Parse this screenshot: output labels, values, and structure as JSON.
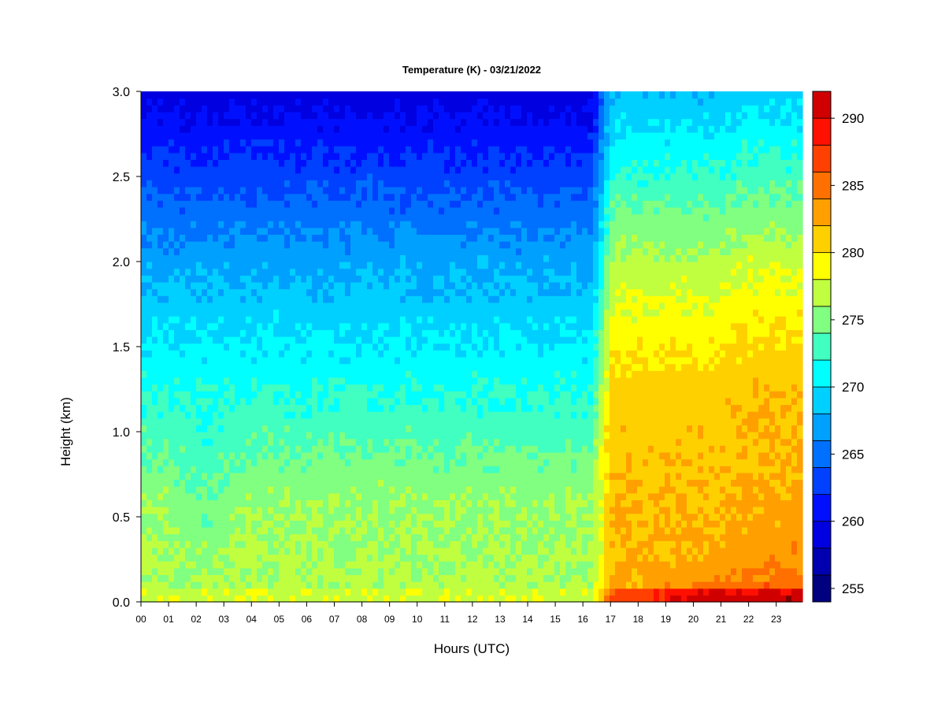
{
  "chart_data": {
    "type": "heatmap",
    "title": "Temperature (K) - 03/21/2022",
    "xlabel": "Hours (UTC)",
    "ylabel": "Height (km)",
    "xlim": [
      0,
      23.95
    ],
    "ylim": [
      0,
      3.0
    ],
    "x_ticks": [
      "00",
      "01",
      "02",
      "03",
      "04",
      "05",
      "06",
      "07",
      "08",
      "09",
      "10",
      "11",
      "12",
      "13",
      "14",
      "15",
      "16",
      "17",
      "18",
      "19",
      "20",
      "21",
      "22",
      "23"
    ],
    "y_ticks": [
      "0.0",
      "0.5",
      "1.0",
      "1.5",
      "2.0",
      "2.5",
      "3.0"
    ],
    "colorbar": {
      "min": 254,
      "max": 292,
      "levels": [
        254,
        256,
        258,
        260,
        262,
        264,
        266,
        268,
        270,
        272,
        274,
        276,
        278,
        280,
        282,
        284,
        286,
        288,
        290,
        292
      ],
      "colors": [
        "#000080",
        "#0000b0",
        "#0000e0",
        "#0010ff",
        "#0040ff",
        "#0070ff",
        "#00a0ff",
        "#00d0ff",
        "#00ffff",
        "#40ffc0",
        "#80ff80",
        "#c0ff40",
        "#ffff00",
        "#ffd000",
        "#ffa000",
        "#ff7000",
        "#ff4000",
        "#ff1000",
        "#d00000",
        "#800000"
      ],
      "ticks": [
        255,
        260,
        265,
        270,
        275,
        280,
        285,
        290
      ]
    },
    "grid": false,
    "legend": "colorbar-right"
  }
}
